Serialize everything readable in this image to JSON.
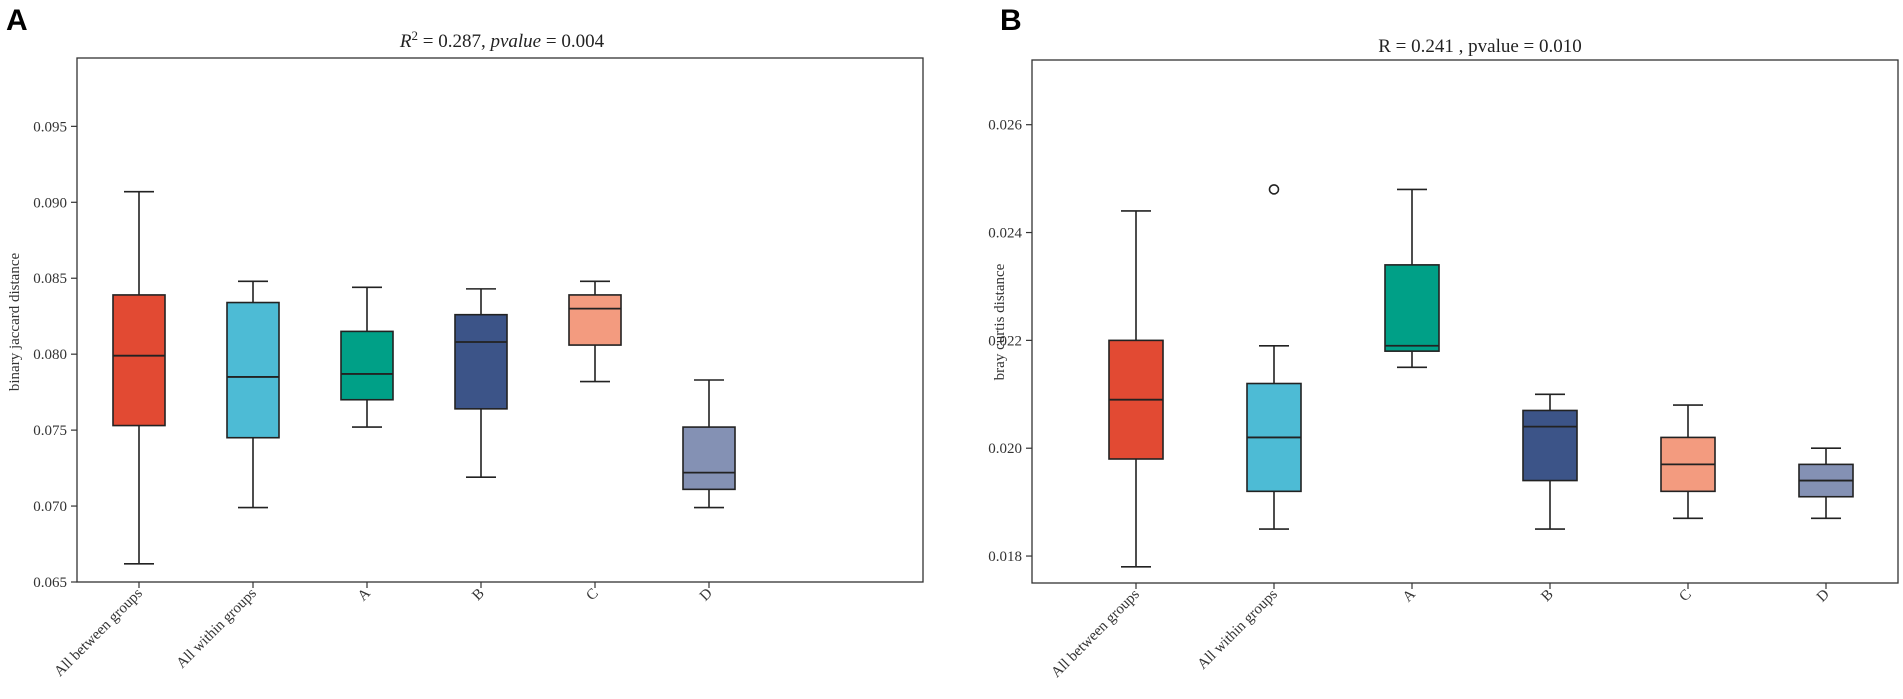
{
  "chart_data": [
    {
      "panel": "A",
      "type": "box",
      "title_parts": {
        "r": "R",
        "sup": "2",
        "eq1": " = 0.287, ",
        "pvalue": "pvalue",
        "eq2": " = 0.004"
      },
      "ylabel": "binary jaccard distance",
      "ylim": [
        0.065,
        0.0995
      ],
      "yticks": [
        "0.065",
        "0.070",
        "0.075",
        "0.080",
        "0.085",
        "0.090",
        "0.095"
      ],
      "categories": [
        "All between groups",
        "All within groups",
        "A",
        "B",
        "C",
        "D"
      ],
      "colors": [
        "#e24a33",
        "#4dbbd5",
        "#00a087",
        "#3c5488",
        "#f39b7f",
        "#8491b4"
      ],
      "boxes": [
        {
          "min": 0.0662,
          "q1": 0.0753,
          "median": 0.0799,
          "q3": 0.0839,
          "max": 0.0907,
          "fliers": []
        },
        {
          "min": 0.0699,
          "q1": 0.0745,
          "median": 0.0785,
          "q3": 0.0834,
          "max": 0.0848,
          "fliers": []
        },
        {
          "min": 0.0752,
          "q1": 0.077,
          "median": 0.0787,
          "q3": 0.0815,
          "max": 0.0844,
          "fliers": []
        },
        {
          "min": 0.0719,
          "q1": 0.0764,
          "median": 0.0808,
          "q3": 0.0826,
          "max": 0.0843,
          "fliers": []
        },
        {
          "min": 0.0782,
          "q1": 0.0806,
          "median": 0.083,
          "q3": 0.0839,
          "max": 0.0848,
          "fliers": []
        },
        {
          "min": 0.0699,
          "q1": 0.0711,
          "median": 0.0722,
          "q3": 0.0752,
          "max": 0.0783,
          "fliers": []
        }
      ]
    },
    {
      "panel": "B",
      "type": "box",
      "title_parts": {
        "text": "R = 0.241 , pvalue = 0.010"
      },
      "ylabel": "bray curtis distance",
      "ylim": [
        0.0175,
        0.0272
      ],
      "yticks": [
        "0.018",
        "0.020",
        "0.022",
        "0.024",
        "0.026"
      ],
      "categories": [
        "All between groups",
        "All within groups",
        "A",
        "B",
        "C",
        "D"
      ],
      "colors": [
        "#e24a33",
        "#4dbbd5",
        "#00a087",
        "#3c5488",
        "#f39b7f",
        "#8491b4"
      ],
      "boxes": [
        {
          "min": 0.0178,
          "q1": 0.0198,
          "median": 0.0209,
          "q3": 0.022,
          "max": 0.0244,
          "fliers": []
        },
        {
          "min": 0.0185,
          "q1": 0.0192,
          "median": 0.0202,
          "q3": 0.0212,
          "max": 0.0219,
          "fliers": [
            0.0248
          ]
        },
        {
          "min": 0.0215,
          "q1": 0.0218,
          "median": 0.0219,
          "q3": 0.0234,
          "max": 0.0248,
          "fliers": []
        },
        {
          "min": 0.0185,
          "q1": 0.0194,
          "median": 0.0204,
          "q3": 0.0207,
          "max": 0.021,
          "fliers": []
        },
        {
          "min": 0.0187,
          "q1": 0.0192,
          "median": 0.0197,
          "q3": 0.0202,
          "max": 0.0208,
          "fliers": []
        },
        {
          "min": 0.0187,
          "q1": 0.0191,
          "median": 0.0194,
          "q3": 0.0197,
          "max": 0.02,
          "fliers": []
        }
      ]
    }
  ]
}
